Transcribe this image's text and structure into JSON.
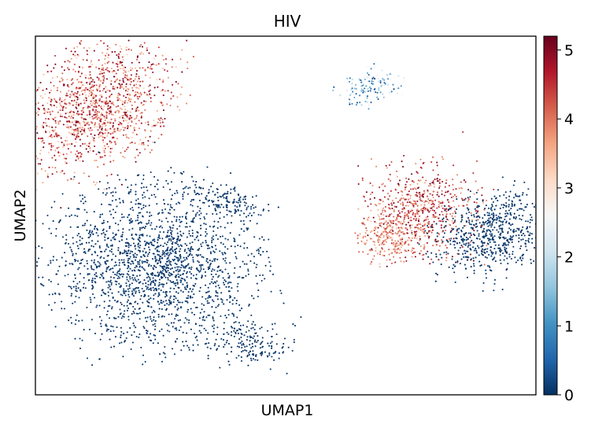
{
  "chart_data": {
    "type": "scatter",
    "title": "HIV",
    "xlabel": "UMAP1",
    "ylabel": "UMAP2",
    "xticks": [],
    "yticks": [],
    "xlim": [
      0,
      100
    ],
    "ylim": [
      0,
      100
    ],
    "colorbar": {
      "colormap": "RdBu_r",
      "vmin": 0,
      "vmax": 5.2,
      "ticks": [
        0,
        1,
        2,
        3,
        4,
        5
      ],
      "tick_labels": [
        "0",
        "1",
        "2",
        "3",
        "4",
        "5"
      ],
      "stops": [
        "#053061",
        "#2166ac",
        "#4393c3",
        "#92c5de",
        "#d1e5f0",
        "#f7f7f7",
        "#fddbc7",
        "#f4a582",
        "#d6604d",
        "#b2182b",
        "#67001f"
      ]
    },
    "clusters": [
      {
        "name": "top-left",
        "expression_level": "high",
        "center": [
          12,
          80
        ],
        "spread": [
          6.5,
          9.5
        ],
        "rotation_deg": -28,
        "n_points": 1300,
        "value_range": [
          3.2,
          5.2
        ]
      },
      {
        "name": "bottom-left",
        "expression_level": "zero",
        "center": [
          24,
          36
        ],
        "spread": [
          10,
          11
        ],
        "rotation_deg": 12,
        "n_points": 1900,
        "value_range": [
          0,
          0.15
        ]
      },
      {
        "name": "bottom-left-tail",
        "expression_level": "zero",
        "center": [
          43,
          14
        ],
        "spread": [
          4,
          3
        ],
        "rotation_deg": -20,
        "n_points": 160,
        "value_range": [
          0,
          0.1
        ]
      },
      {
        "name": "bottom-left-bridge",
        "expression_level": "zero",
        "center": [
          38,
          54
        ],
        "spread": [
          4.5,
          1.8
        ],
        "rotation_deg": -20,
        "n_points": 150,
        "value_range": [
          0,
          0.1
        ]
      },
      {
        "name": "top-middle",
        "expression_level": "mixed",
        "center": [
          67,
          86
        ],
        "spread": [
          3,
          2.2
        ],
        "rotation_deg": 30,
        "n_points": 130,
        "value_range": [
          0,
          2.8
        ]
      },
      {
        "name": "right-red",
        "expression_level": "high",
        "center": [
          77,
          51
        ],
        "spread": [
          5.5,
          6.5
        ],
        "rotation_deg": 0,
        "n_points": 650,
        "value_range": [
          3.6,
          5.2
        ]
      },
      {
        "name": "right-orange",
        "expression_level": "medium-high",
        "center": [
          71,
          44
        ],
        "spread": [
          3,
          3.2
        ],
        "rotation_deg": 0,
        "n_points": 220,
        "value_range": [
          3.3,
          4.3
        ]
      },
      {
        "name": "right-blue",
        "expression_level": "zero",
        "center": [
          91,
          45
        ],
        "spread": [
          5,
          6.5
        ],
        "rotation_deg": -35,
        "n_points": 650,
        "value_range": [
          0,
          0.15
        ]
      }
    ]
  }
}
